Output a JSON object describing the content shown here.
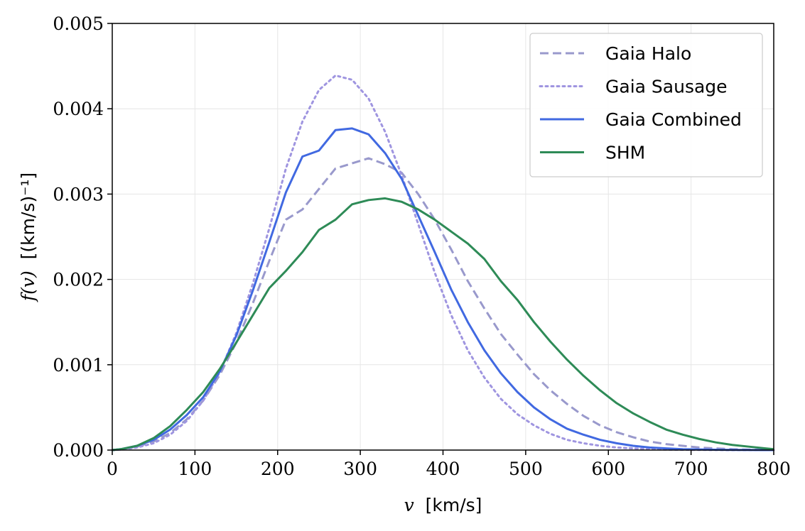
{
  "chart_data": {
    "type": "line",
    "title": "",
    "xlabel": {
      "var": "v",
      "unit": "[km/s]"
    },
    "ylabel": {
      "func": "f(v)",
      "unit": "[(km/s)⁻¹]"
    },
    "xlim": [
      0,
      800
    ],
    "ylim": [
      0,
      0.005
    ],
    "xticks": [
      "0",
      "100",
      "200",
      "300",
      "400",
      "500",
      "600",
      "700",
      "800"
    ],
    "yticks": [
      "0.000",
      "0.001",
      "0.002",
      "0.003",
      "0.004",
      "0.005"
    ],
    "grid": true,
    "legend_position": "top-right",
    "series": [
      {
        "name": "Gaia Halo",
        "color": "#9999cc",
        "style": "dashed",
        "x": [
          0,
          10,
          30,
          50,
          70,
          90,
          110,
          130,
          150,
          170,
          190,
          210,
          230,
          250,
          270,
          290,
          310,
          330,
          350,
          370,
          390,
          410,
          430,
          450,
          470,
          490,
          510,
          530,
          550,
          570,
          590,
          610,
          630,
          650,
          670,
          690,
          710,
          730,
          750,
          770,
          790,
          800
        ],
        "y": [
          0,
          1e-05,
          4e-05,
          0.0001,
          0.0002,
          0.00036,
          0.00058,
          0.00088,
          0.00126,
          0.00172,
          0.00222,
          0.0027,
          0.00282,
          0.00306,
          0.0033,
          0.00336,
          0.00342,
          0.00335,
          0.00325,
          0.003,
          0.0027,
          0.00235,
          0.00198,
          0.00166,
          0.00136,
          0.00112,
          0.00089,
          0.0007,
          0.00054,
          0.0004,
          0.00029,
          0.00021,
          0.00015,
          0.0001,
          7e-05,
          5e-05,
          3e-05,
          2e-05,
          1e-05,
          5e-06,
          2e-06,
          1e-06
        ]
      },
      {
        "name": "Gaia Sausage",
        "color": "#9f95e0",
        "style": "dotted",
        "x": [
          0,
          10,
          30,
          50,
          70,
          90,
          110,
          130,
          150,
          170,
          190,
          210,
          230,
          250,
          270,
          290,
          310,
          330,
          350,
          370,
          390,
          410,
          430,
          450,
          470,
          490,
          510,
          530,
          550,
          570,
          590,
          610,
          630,
          650,
          670,
          690,
          710,
          730,
          750,
          770,
          790,
          800
        ],
        "y": [
          0,
          5e-06,
          3e-05,
          8e-05,
          0.00018,
          0.00034,
          0.00058,
          0.00091,
          0.00137,
          0.00195,
          0.0026,
          0.0033,
          0.00385,
          0.00422,
          0.00439,
          0.00434,
          0.00412,
          0.00373,
          0.00322,
          0.00265,
          0.00208,
          0.00158,
          0.00117,
          0.00085,
          0.0006,
          0.00042,
          0.00029,
          0.00019,
          0.00012,
          8e-05,
          5e-05,
          3e-05,
          2e-05,
          1e-05,
          6e-06,
          3e-06,
          2e-06,
          1e-06,
          0,
          0,
          0,
          0
        ]
      },
      {
        "name": "Gaia Combined",
        "color": "#4169e1",
        "style": "solid",
        "x": [
          0,
          10,
          30,
          50,
          70,
          90,
          110,
          130,
          150,
          170,
          190,
          210,
          230,
          250,
          270,
          290,
          310,
          330,
          350,
          370,
          390,
          410,
          430,
          450,
          470,
          490,
          510,
          530,
          550,
          570,
          590,
          610,
          630,
          650,
          670,
          690,
          710,
          730,
          750,
          770,
          790,
          800
        ],
        "y": [
          0,
          1e-05,
          5e-05,
          0.00012,
          0.00024,
          0.00041,
          0.00062,
          0.00092,
          0.00134,
          0.00187,
          0.00244,
          0.00302,
          0.00344,
          0.00351,
          0.00375,
          0.00377,
          0.0037,
          0.00348,
          0.00318,
          0.00275,
          0.00232,
          0.00188,
          0.0015,
          0.00117,
          0.0009,
          0.00068,
          0.0005,
          0.00036,
          0.00025,
          0.00018,
          0.00012,
          8e-05,
          5e-05,
          3e-05,
          2e-05,
          1e-05,
          7e-06,
          4e-06,
          2e-06,
          1e-06,
          0,
          0
        ]
      },
      {
        "name": "SHM",
        "color": "#2e8b57",
        "style": "solid",
        "x": [
          0,
          10,
          30,
          50,
          70,
          90,
          110,
          130,
          150,
          170,
          190,
          210,
          230,
          250,
          270,
          290,
          310,
          330,
          350,
          370,
          390,
          410,
          430,
          450,
          470,
          490,
          510,
          530,
          550,
          570,
          590,
          610,
          630,
          650,
          670,
          690,
          710,
          730,
          750,
          770,
          790,
          800
        ],
        "y": [
          0,
          1e-05,
          5e-05,
          0.00014,
          0.00028,
          0.00047,
          0.00068,
          0.00095,
          0.00126,
          0.00158,
          0.0019,
          0.0021,
          0.00232,
          0.00258,
          0.0027,
          0.00288,
          0.00293,
          0.00295,
          0.00291,
          0.00282,
          0.0027,
          0.00256,
          0.00242,
          0.00224,
          0.00198,
          0.00176,
          0.0015,
          0.00127,
          0.00106,
          0.00087,
          0.0007,
          0.00055,
          0.00043,
          0.00033,
          0.00024,
          0.00018,
          0.00013,
          9e-05,
          6e-05,
          4e-05,
          2e-05,
          1e-05
        ]
      }
    ]
  }
}
